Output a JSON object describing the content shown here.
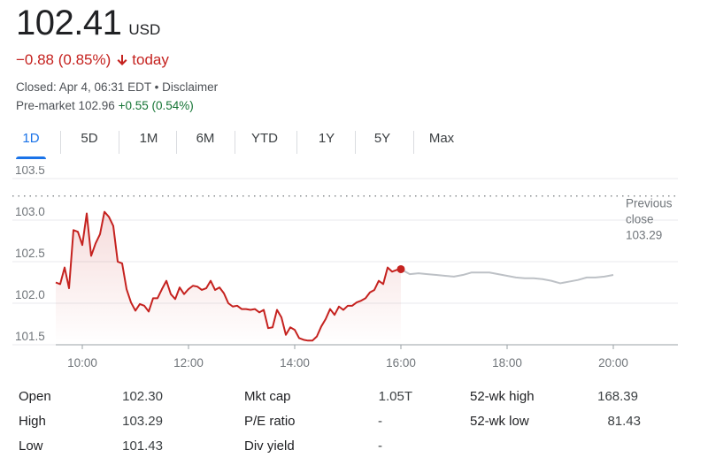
{
  "quote": {
    "price": "102.41",
    "currency": "USD",
    "change_text": "−0.88 (0.85%)",
    "change_suffix": "today",
    "closed_text": "Closed: Apr 4, 06:31 EDT • Disclaimer",
    "premarket_label": "Pre-market 102.96",
    "premarket_change": "+0.55 (0.54%)"
  },
  "colors": {
    "down": "#c5221f",
    "up": "#137333",
    "accent": "#1a73e8",
    "extended_line": "#bdc1c6"
  },
  "tabs": [
    {
      "label": "1D",
      "active": true
    },
    {
      "label": "5D",
      "active": false
    },
    {
      "label": "1M",
      "active": false
    },
    {
      "label": "6M",
      "active": false
    },
    {
      "label": "YTD",
      "active": false
    },
    {
      "label": "1Y",
      "active": false
    },
    {
      "label": "5Y",
      "active": false
    },
    {
      "label": "Max",
      "active": false
    }
  ],
  "chart_data": {
    "type": "line",
    "x_ticks": [
      "10:00",
      "12:00",
      "14:00",
      "16:00",
      "18:00",
      "20:00"
    ],
    "y_ticks": [
      101.5,
      102.0,
      102.5,
      103.0,
      103.5
    ],
    "ylim": [
      101.5,
      103.5
    ],
    "grid": true,
    "previous_close": 103.29,
    "previous_close_label": [
      "Previous",
      "close",
      "103.29"
    ],
    "series": [
      {
        "x": [
          "09:30",
          "09:35",
          "09:40",
          "09:45",
          "09:50",
          "09:55",
          "10:00",
          "10:05",
          "10:10",
          "10:15",
          "10:20",
          "10:25",
          "10:30",
          "10:35",
          "10:40",
          "10:45",
          "10:50",
          "10:55",
          "11:00",
          "11:05",
          "11:10",
          "11:15",
          "11:20",
          "11:25",
          "11:30",
          "11:35",
          "11:40",
          "11:45",
          "11:50",
          "11:55",
          "12:00",
          "12:05",
          "12:10",
          "12:15",
          "12:20",
          "12:25",
          "12:30",
          "12:35",
          "12:40",
          "12:45",
          "12:50",
          "12:55",
          "13:00",
          "13:05",
          "13:10",
          "13:15",
          "13:20",
          "13:25",
          "13:30",
          "13:35",
          "13:40",
          "13:45",
          "13:50",
          "13:55",
          "14:00",
          "14:05",
          "14:10",
          "14:15",
          "14:20",
          "14:25",
          "14:30",
          "14:35",
          "14:40",
          "14:45",
          "14:50",
          "14:55",
          "15:00",
          "15:05",
          "15:10",
          "15:15",
          "15:20",
          "15:25",
          "15:30",
          "15:35",
          "15:40",
          "15:45",
          "15:50",
          "15:55",
          "16:00"
        ],
        "values": [
          102.25,
          102.23,
          102.43,
          102.18,
          102.88,
          102.86,
          102.7,
          103.08,
          102.57,
          102.72,
          102.83,
          103.1,
          103.04,
          102.93,
          102.5,
          102.48,
          102.17,
          102.01,
          101.91,
          101.99,
          101.97,
          101.9,
          102.06,
          102.06,
          102.17,
          102.27,
          102.11,
          102.05,
          102.19,
          102.11,
          102.17,
          102.21,
          102.2,
          102.16,
          102.18,
          102.27,
          102.16,
          102.19,
          102.12,
          102.0,
          101.96,
          101.97,
          101.93,
          101.93,
          101.92,
          101.93,
          101.89,
          101.92,
          101.7,
          101.71,
          101.92,
          101.83,
          101.62,
          101.71,
          101.68,
          101.58,
          101.56,
          101.55,
          101.55,
          101.6,
          101.72,
          101.81,
          101.93,
          101.86,
          101.96,
          101.92,
          101.97,
          101.97,
          102.01,
          102.03,
          102.06,
          102.13,
          102.16,
          102.27,
          102.23,
          102.43,
          102.38,
          102.4,
          102.41
        ]
      },
      {
        "x": [
          "16:00",
          "16:10",
          "16:20",
          "16:30",
          "16:40",
          "16:50",
          "17:00",
          "17:10",
          "17:20",
          "17:30",
          "17:40",
          "17:50",
          "18:00",
          "18:10",
          "18:20",
          "18:30",
          "18:40",
          "18:50",
          "19:00",
          "19:10",
          "19:20",
          "19:30",
          "19:40",
          "19:50",
          "20:00"
        ],
        "values": [
          102.41,
          102.35,
          102.36,
          102.35,
          102.34,
          102.33,
          102.32,
          102.34,
          102.37,
          102.37,
          102.37,
          102.35,
          102.33,
          102.31,
          102.3,
          102.3,
          102.29,
          102.27,
          102.24,
          102.26,
          102.28,
          102.31,
          102.31,
          102.32,
          102.34
        ]
      }
    ]
  },
  "stats": {
    "open": {
      "label": "Open",
      "value": "102.30"
    },
    "high": {
      "label": "High",
      "value": "103.29"
    },
    "low": {
      "label": "Low",
      "value": "101.43"
    },
    "mkt_cap": {
      "label": "Mkt cap",
      "value": "1.05T"
    },
    "pe_ratio": {
      "label": "P/E ratio",
      "value": "-"
    },
    "div_yield": {
      "label": "Div yield",
      "value": "-"
    },
    "wk52_high": {
      "label": "52-wk high",
      "value": "168.39"
    },
    "wk52_low": {
      "label": "52-wk low",
      "value": "81.43"
    }
  }
}
